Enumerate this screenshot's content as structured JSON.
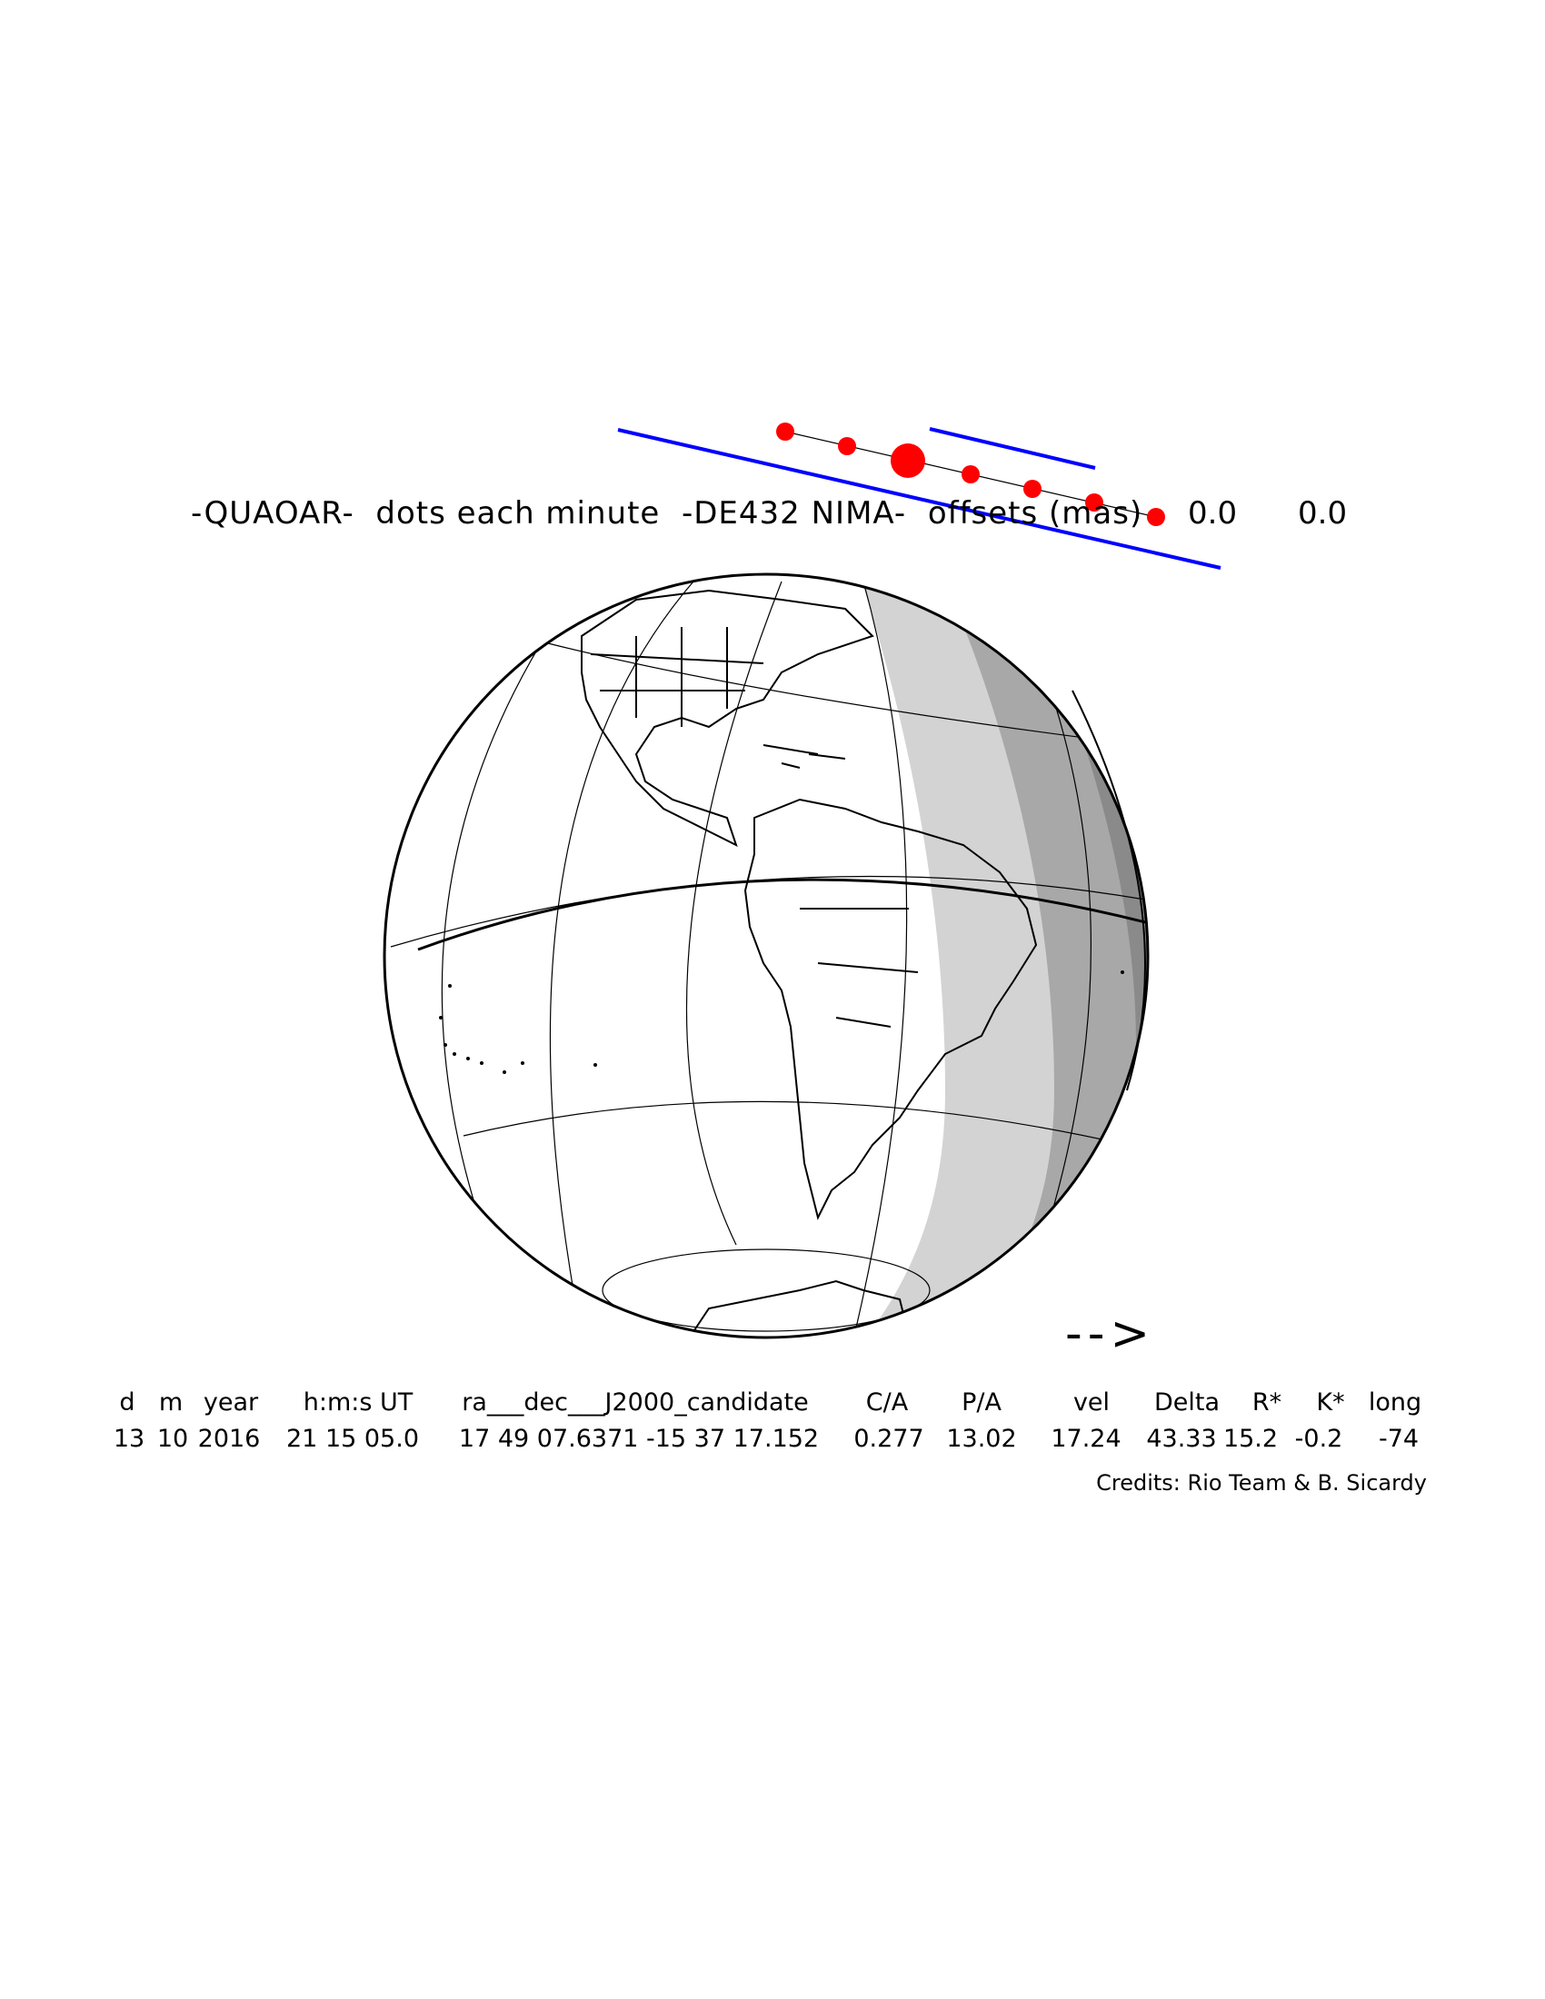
{
  "title": {
    "object": "-QUAOAR-",
    "middle": "dots each minute",
    "ephemeris": "-DE432 NIMA-",
    "offsets_label": "offsets (mas)",
    "offset_ra": "0.0",
    "offset_dec": "0.0"
  },
  "direction_arrow": "-->",
  "table": {
    "headers": [
      "d",
      "m",
      "year",
      "h:m:s UT",
      "ra___dec___J2000_candidate",
      "C/A",
      "P/A",
      "vel",
      "Delta",
      "R*",
      "K*",
      "long"
    ],
    "values": [
      "13",
      "10",
      "2016",
      "21 15 05.0",
      "17 49 07.6371 -15 37 17.152",
      "0.277",
      "13.02",
      "17.24",
      "43.33",
      "15.2",
      "-0.2",
      "-74"
    ]
  },
  "credits": "Credits: Rio Team & B. Sicardy",
  "map": {
    "dot_count": 7,
    "dot_color": "#ff0000",
    "shadow_limit_color": "#0000ff",
    "night_shade_colors": [
      "#d3d3d3",
      "#a8a8a8",
      "#8a8a8a"
    ]
  }
}
